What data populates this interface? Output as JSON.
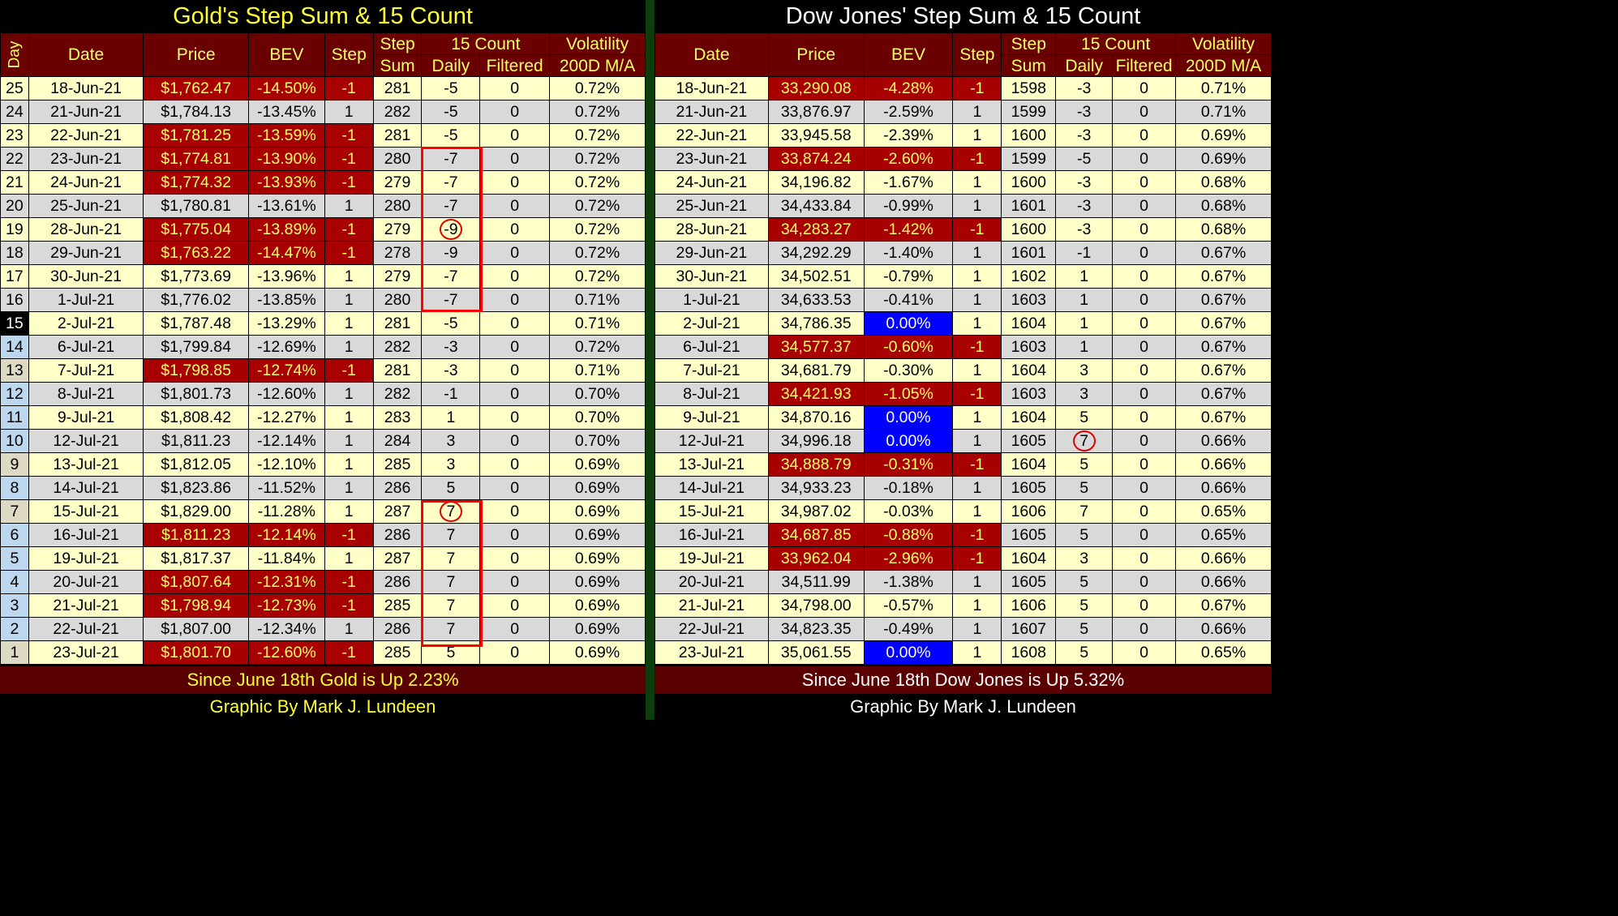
{
  "gold": {
    "title": "Gold's Step Sum & 15 Count",
    "headers": {
      "day": "Day",
      "date": "Date",
      "price": "Price",
      "bev": "BEV",
      "step": "Step",
      "step_sum_1": "Step",
      "step_sum_2": "Sum",
      "count15": "15 Count",
      "daily": "Daily",
      "filtered": "Filtered",
      "vol_1": "Volatility",
      "vol_2": "200D M/A"
    },
    "rows": [
      {
        "day": "25",
        "date": "18-Jun-21",
        "price": "$1,762.47",
        "bev": "-14.50%",
        "step": "-1",
        "step_sum": "281",
        "daily": "-5",
        "filtered": "0",
        "vol": "0.72%"
      },
      {
        "day": "24",
        "date": "21-Jun-21",
        "price": "$1,784.13",
        "bev": "-13.45%",
        "step": "1",
        "step_sum": "282",
        "daily": "-5",
        "filtered": "0",
        "vol": "0.72%"
      },
      {
        "day": "23",
        "date": "22-Jun-21",
        "price": "$1,781.25",
        "bev": "-13.59%",
        "step": "-1",
        "step_sum": "281",
        "daily": "-5",
        "filtered": "0",
        "vol": "0.72%"
      },
      {
        "day": "22",
        "date": "23-Jun-21",
        "price": "$1,774.81",
        "bev": "-13.90%",
        "step": "-1",
        "step_sum": "280",
        "daily": "-7",
        "filtered": "0",
        "vol": "0.72%"
      },
      {
        "day": "21",
        "date": "24-Jun-21",
        "price": "$1,774.32",
        "bev": "-13.93%",
        "step": "-1",
        "step_sum": "279",
        "daily": "-7",
        "filtered": "0",
        "vol": "0.72%"
      },
      {
        "day": "20",
        "date": "25-Jun-21",
        "price": "$1,780.81",
        "bev": "-13.61%",
        "step": "1",
        "step_sum": "280",
        "daily": "-7",
        "filtered": "0",
        "vol": "0.72%"
      },
      {
        "day": "19",
        "date": "28-Jun-21",
        "price": "$1,775.04",
        "bev": "-13.89%",
        "step": "-1",
        "step_sum": "279",
        "daily": "-9",
        "filtered": "0",
        "vol": "0.72%"
      },
      {
        "day": "18",
        "date": "29-Jun-21",
        "price": "$1,763.22",
        "bev": "-14.47%",
        "step": "-1",
        "step_sum": "278",
        "daily": "-9",
        "filtered": "0",
        "vol": "0.72%"
      },
      {
        "day": "17",
        "date": "30-Jun-21",
        "price": "$1,773.69",
        "bev": "-13.96%",
        "step": "1",
        "step_sum": "279",
        "daily": "-7",
        "filtered": "0",
        "vol": "0.72%"
      },
      {
        "day": "16",
        "date": "1-Jul-21",
        "price": "$1,776.02",
        "bev": "-13.85%",
        "step": "1",
        "step_sum": "280",
        "daily": "-7",
        "filtered": "0",
        "vol": "0.71%"
      },
      {
        "day": "15",
        "date": "2-Jul-21",
        "price": "$1,787.48",
        "bev": "-13.29%",
        "step": "1",
        "step_sum": "281",
        "daily": "-5",
        "filtered": "0",
        "vol": "0.71%"
      },
      {
        "day": "14",
        "date": "6-Jul-21",
        "price": "$1,799.84",
        "bev": "-12.69%",
        "step": "1",
        "step_sum": "282",
        "daily": "-3",
        "filtered": "0",
        "vol": "0.72%"
      },
      {
        "day": "13",
        "date": "7-Jul-21",
        "price": "$1,798.85",
        "bev": "-12.74%",
        "step": "-1",
        "step_sum": "281",
        "daily": "-3",
        "filtered": "0",
        "vol": "0.71%"
      },
      {
        "day": "12",
        "date": "8-Jul-21",
        "price": "$1,801.73",
        "bev": "-12.60%",
        "step": "1",
        "step_sum": "282",
        "daily": "-1",
        "filtered": "0",
        "vol": "0.70%"
      },
      {
        "day": "11",
        "date": "9-Jul-21",
        "price": "$1,808.42",
        "bev": "-12.27%",
        "step": "1",
        "step_sum": "283",
        "daily": "1",
        "filtered": "0",
        "vol": "0.70%"
      },
      {
        "day": "10",
        "date": "12-Jul-21",
        "price": "$1,811.23",
        "bev": "-12.14%",
        "step": "1",
        "step_sum": "284",
        "daily": "3",
        "filtered": "0",
        "vol": "0.70%"
      },
      {
        "day": "9",
        "date": "13-Jul-21",
        "price": "$1,812.05",
        "bev": "-12.10%",
        "step": "1",
        "step_sum": "285",
        "daily": "3",
        "filtered": "0",
        "vol": "0.69%"
      },
      {
        "day": "8",
        "date": "14-Jul-21",
        "price": "$1,823.86",
        "bev": "-11.52%",
        "step": "1",
        "step_sum": "286",
        "daily": "5",
        "filtered": "0",
        "vol": "0.69%"
      },
      {
        "day": "7",
        "date": "15-Jul-21",
        "price": "$1,829.00",
        "bev": "-11.28%",
        "step": "1",
        "step_sum": "287",
        "daily": "7",
        "filtered": "0",
        "vol": "0.69%"
      },
      {
        "day": "6",
        "date": "16-Jul-21",
        "price": "$1,811.23",
        "bev": "-12.14%",
        "step": "-1",
        "step_sum": "286",
        "daily": "7",
        "filtered": "0",
        "vol": "0.69%"
      },
      {
        "day": "5",
        "date": "19-Jul-21",
        "price": "$1,817.37",
        "bev": "-11.84%",
        "step": "1",
        "step_sum": "287",
        "daily": "7",
        "filtered": "0",
        "vol": "0.69%"
      },
      {
        "day": "4",
        "date": "20-Jul-21",
        "price": "$1,807.64",
        "bev": "-12.31%",
        "step": "-1",
        "step_sum": "286",
        "daily": "7",
        "filtered": "0",
        "vol": "0.69%"
      },
      {
        "day": "3",
        "date": "21-Jul-21",
        "price": "$1,798.94",
        "bev": "-12.73%",
        "step": "-1",
        "step_sum": "285",
        "daily": "7",
        "filtered": "0",
        "vol": "0.69%"
      },
      {
        "day": "2",
        "date": "22-Jul-21",
        "price": "$1,807.00",
        "bev": "-12.34%",
        "step": "1",
        "step_sum": "286",
        "daily": "7",
        "filtered": "0",
        "vol": "0.69%"
      },
      {
        "day": "1",
        "date": "23-Jul-21",
        "price": "$1,801.70",
        "bev": "-12.60%",
        "step": "-1",
        "step_sum": "285",
        "daily": "5",
        "filtered": "0",
        "vol": "0.69%"
      }
    ],
    "footer": "Since June 18th  Gold is Up 2.23%",
    "credit": "Graphic By Mark J. Lundeen"
  },
  "dow": {
    "title": "Dow Jones' Step Sum & 15 Count",
    "headers": {
      "date": "Date",
      "price": "Price",
      "bev": "BEV",
      "step": "Step",
      "step_sum_1": "Step",
      "step_sum_2": "Sum",
      "count15": "15 Count",
      "daily": "Daily",
      "filtered": "Filtered",
      "vol_1": "Volatility",
      "vol_2": "200D M/A"
    },
    "rows": [
      {
        "date": "18-Jun-21",
        "price": "33,290.08",
        "bev": "-4.28%",
        "step": "-1",
        "step_sum": "1598",
        "daily": "-3",
        "filtered": "0",
        "vol": "0.71%"
      },
      {
        "date": "21-Jun-21",
        "price": "33,876.97",
        "bev": "-2.59%",
        "step": "1",
        "step_sum": "1599",
        "daily": "-3",
        "filtered": "0",
        "vol": "0.71%"
      },
      {
        "date": "22-Jun-21",
        "price": "33,945.58",
        "bev": "-2.39%",
        "step": "1",
        "step_sum": "1600",
        "daily": "-3",
        "filtered": "0",
        "vol": "0.69%"
      },
      {
        "date": "23-Jun-21",
        "price": "33,874.24",
        "bev": "-2.60%",
        "step": "-1",
        "step_sum": "1599",
        "daily": "-5",
        "filtered": "0",
        "vol": "0.69%"
      },
      {
        "date": "24-Jun-21",
        "price": "34,196.82",
        "bev": "-1.67%",
        "step": "1",
        "step_sum": "1600",
        "daily": "-3",
        "filtered": "0",
        "vol": "0.68%"
      },
      {
        "date": "25-Jun-21",
        "price": "34,433.84",
        "bev": "-0.99%",
        "step": "1",
        "step_sum": "1601",
        "daily": "-3",
        "filtered": "0",
        "vol": "0.68%"
      },
      {
        "date": "28-Jun-21",
        "price": "34,283.27",
        "bev": "-1.42%",
        "step": "-1",
        "step_sum": "1600",
        "daily": "-3",
        "filtered": "0",
        "vol": "0.68%"
      },
      {
        "date": "29-Jun-21",
        "price": "34,292.29",
        "bev": "-1.40%",
        "step": "1",
        "step_sum": "1601",
        "daily": "-1",
        "filtered": "0",
        "vol": "0.67%"
      },
      {
        "date": "30-Jun-21",
        "price": "34,502.51",
        "bev": "-0.79%",
        "step": "1",
        "step_sum": "1602",
        "daily": "1",
        "filtered": "0",
        "vol": "0.67%"
      },
      {
        "date": "1-Jul-21",
        "price": "34,633.53",
        "bev": "-0.41%",
        "step": "1",
        "step_sum": "1603",
        "daily": "1",
        "filtered": "0",
        "vol": "0.67%"
      },
      {
        "date": "2-Jul-21",
        "price": "34,786.35",
        "bev": "0.00%",
        "step": "1",
        "step_sum": "1604",
        "daily": "1",
        "filtered": "0",
        "vol": "0.67%"
      },
      {
        "date": "6-Jul-21",
        "price": "34,577.37",
        "bev": "-0.60%",
        "step": "-1",
        "step_sum": "1603",
        "daily": "1",
        "filtered": "0",
        "vol": "0.67%"
      },
      {
        "date": "7-Jul-21",
        "price": "34,681.79",
        "bev": "-0.30%",
        "step": "1",
        "step_sum": "1604",
        "daily": "3",
        "filtered": "0",
        "vol": "0.67%"
      },
      {
        "date": "8-Jul-21",
        "price": "34,421.93",
        "bev": "-1.05%",
        "step": "-1",
        "step_sum": "1603",
        "daily": "3",
        "filtered": "0",
        "vol": "0.67%"
      },
      {
        "date": "9-Jul-21",
        "price": "34,870.16",
        "bev": "0.00%",
        "step": "1",
        "step_sum": "1604",
        "daily": "5",
        "filtered": "0",
        "vol": "0.67%"
      },
      {
        "date": "12-Jul-21",
        "price": "34,996.18",
        "bev": "0.00%",
        "step": "1",
        "step_sum": "1605",
        "daily": "7",
        "filtered": "0",
        "vol": "0.66%"
      },
      {
        "date": "13-Jul-21",
        "price": "34,888.79",
        "bev": "-0.31%",
        "step": "-1",
        "step_sum": "1604",
        "daily": "5",
        "filtered": "0",
        "vol": "0.66%"
      },
      {
        "date": "14-Jul-21",
        "price": "34,933.23",
        "bev": "-0.18%",
        "step": "1",
        "step_sum": "1605",
        "daily": "5",
        "filtered": "0",
        "vol": "0.66%"
      },
      {
        "date": "15-Jul-21",
        "price": "34,987.02",
        "bev": "-0.03%",
        "step": "1",
        "step_sum": "1606",
        "daily": "7",
        "filtered": "0",
        "vol": "0.65%"
      },
      {
        "date": "16-Jul-21",
        "price": "34,687.85",
        "bev": "-0.88%",
        "step": "-1",
        "step_sum": "1605",
        "daily": "5",
        "filtered": "0",
        "vol": "0.65%"
      },
      {
        "date": "19-Jul-21",
        "price": "33,962.04",
        "bev": "-2.96%",
        "step": "-1",
        "step_sum": "1604",
        "daily": "3",
        "filtered": "0",
        "vol": "0.66%"
      },
      {
        "date": "20-Jul-21",
        "price": "34,511.99",
        "bev": "-1.38%",
        "step": "1",
        "step_sum": "1605",
        "daily": "5",
        "filtered": "0",
        "vol": "0.66%"
      },
      {
        "date": "21-Jul-21",
        "price": "34,798.00",
        "bev": "-0.57%",
        "step": "1",
        "step_sum": "1606",
        "daily": "5",
        "filtered": "0",
        "vol": "0.67%"
      },
      {
        "date": "22-Jul-21",
        "price": "34,823.35",
        "bev": "-0.49%",
        "step": "1",
        "step_sum": "1607",
        "daily": "5",
        "filtered": "0",
        "vol": "0.66%"
      },
      {
        "date": "23-Jul-21",
        "price": "35,061.55",
        "bev": "0.00%",
        "step": "1",
        "step_sum": "1608",
        "daily": "5",
        "filtered": "0",
        "vol": "0.65%"
      }
    ],
    "footer": "Since June 18th  Dow Jones is Up 5.32%",
    "credit": "Graphic By Mark J. Lundeen"
  },
  "colors": {
    "header_bg": "#6b0000",
    "header_text": "#ffff66",
    "row_yellow": "#ffffc8",
    "row_gray": "#d9d9d9",
    "down_cell": "#a80000",
    "bev_zero": "#0000ff",
    "highlight_outline": "#ff0000"
  }
}
